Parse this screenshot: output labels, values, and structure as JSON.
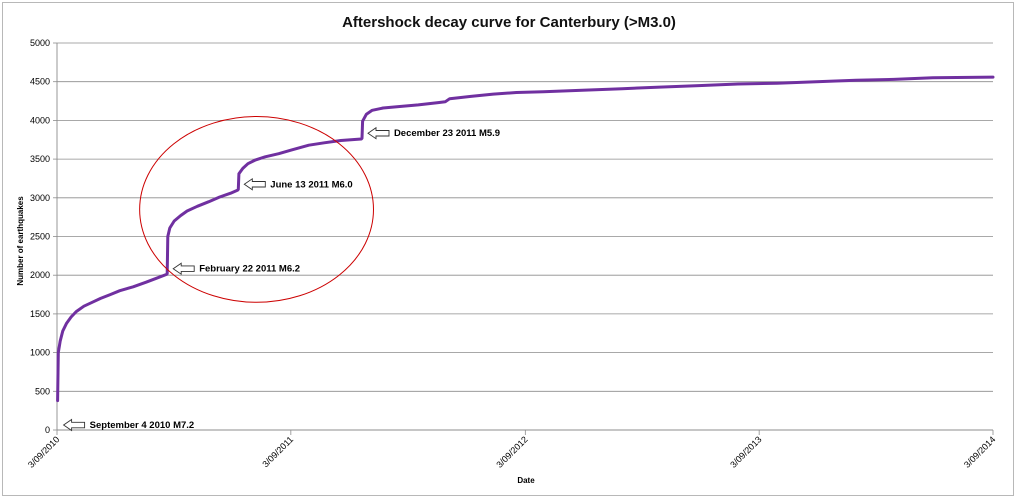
{
  "chart_data": {
    "type": "line",
    "title": "Aftershock decay curve for Canterbury (>M3.0)",
    "xlabel": "Date",
    "ylabel": "Number of earthquakes",
    "ylim": [
      0,
      5000
    ],
    "yticks": [
      0,
      500,
      1000,
      1500,
      2000,
      2500,
      3000,
      3500,
      4000,
      4500,
      5000
    ],
    "xlim": [
      "2010-09-03",
      "2014-09-03"
    ],
    "xticks": [
      {
        "date": "2010-09-03",
        "label": "3/09/2010"
      },
      {
        "date": "2011-09-03",
        "label": "3/09/2011"
      },
      {
        "date": "2012-09-03",
        "label": "3/09/2012"
      },
      {
        "date": "2013-09-03",
        "label": "3/09/2013"
      },
      {
        "date": "2014-09-03",
        "label": "3/09/2014"
      }
    ],
    "grid": "horizontal",
    "series": [
      {
        "color": "#7030a0",
        "points": [
          [
            "2010-09-04",
            380
          ],
          [
            "2010-09-05",
            1000
          ],
          [
            "2010-09-08",
            1150
          ],
          [
            "2010-09-12",
            1280
          ],
          [
            "2010-09-18",
            1380
          ],
          [
            "2010-09-25",
            1460
          ],
          [
            "2010-10-03",
            1530
          ],
          [
            "2010-10-15",
            1600
          ],
          [
            "2010-10-28",
            1650
          ],
          [
            "2010-11-10",
            1700
          ],
          [
            "2010-11-25",
            1750
          ],
          [
            "2010-12-10",
            1800
          ],
          [
            "2010-12-31",
            1850
          ],
          [
            "2011-01-20",
            1910
          ],
          [
            "2011-02-05",
            1960
          ],
          [
            "2011-02-21",
            2010
          ],
          [
            "2011-02-22",
            2020
          ],
          [
            "2011-02-23",
            2500
          ],
          [
            "2011-02-26",
            2610
          ],
          [
            "2011-03-05",
            2700
          ],
          [
            "2011-03-15",
            2770
          ],
          [
            "2011-03-25",
            2830
          ],
          [
            "2011-04-10",
            2890
          ],
          [
            "2011-04-28",
            2950
          ],
          [
            "2011-05-15",
            3010
          ],
          [
            "2011-06-01",
            3060
          ],
          [
            "2011-06-12",
            3100
          ],
          [
            "2011-06-13",
            3110
          ],
          [
            "2011-06-14",
            3310
          ],
          [
            "2011-06-20",
            3380
          ],
          [
            "2011-06-28",
            3440
          ],
          [
            "2011-07-10",
            3490
          ],
          [
            "2011-07-25",
            3530
          ],
          [
            "2011-08-15",
            3570
          ],
          [
            "2011-09-05",
            3620
          ],
          [
            "2011-10-01",
            3680
          ],
          [
            "2011-10-25",
            3710
          ],
          [
            "2011-11-20",
            3740
          ],
          [
            "2011-12-22",
            3760
          ],
          [
            "2011-12-23",
            3770
          ],
          [
            "2011-12-24",
            3990
          ],
          [
            "2011-12-30",
            4080
          ],
          [
            "2012-01-08",
            4130
          ],
          [
            "2012-01-25",
            4160
          ],
          [
            "2012-02-20",
            4180
          ],
          [
            "2012-03-20",
            4200
          ],
          [
            "2012-04-20",
            4230
          ],
          [
            "2012-05-01",
            4240
          ],
          [
            "2012-05-08",
            4280
          ],
          [
            "2012-06-10",
            4310
          ],
          [
            "2012-07-15",
            4340
          ],
          [
            "2012-08-20",
            4360
          ],
          [
            "2012-10-01",
            4370
          ],
          [
            "2012-12-01",
            4390
          ],
          [
            "2013-02-01",
            4410
          ],
          [
            "2013-04-01",
            4430
          ],
          [
            "2013-06-01",
            4450
          ],
          [
            "2013-08-01",
            4470
          ],
          [
            "2013-10-01",
            4480
          ],
          [
            "2013-12-01",
            4500
          ],
          [
            "2014-02-01",
            4520
          ],
          [
            "2014-04-01",
            4530
          ],
          [
            "2014-06-01",
            4550
          ],
          [
            "2014-09-03",
            4560
          ]
        ]
      }
    ],
    "annotations": [
      {
        "text": "September 4 2010 M7.2",
        "date": "2010-09-04",
        "value": 0
      },
      {
        "text": "February 22 2011 M6.2",
        "date": "2011-02-22",
        "value": 2020
      },
      {
        "text": "June 13 2011 M6.0",
        "date": "2011-06-13",
        "value": 3110
      },
      {
        "text": "December 23 2011 M5.9",
        "date": "2011-12-23",
        "value": 3770
      }
    ],
    "highlight_ellipse": {
      "color": "#cc0000",
      "x_range": [
        "2011-01-10",
        "2012-01-10"
      ],
      "y_range": [
        1650,
        4050
      ]
    }
  }
}
